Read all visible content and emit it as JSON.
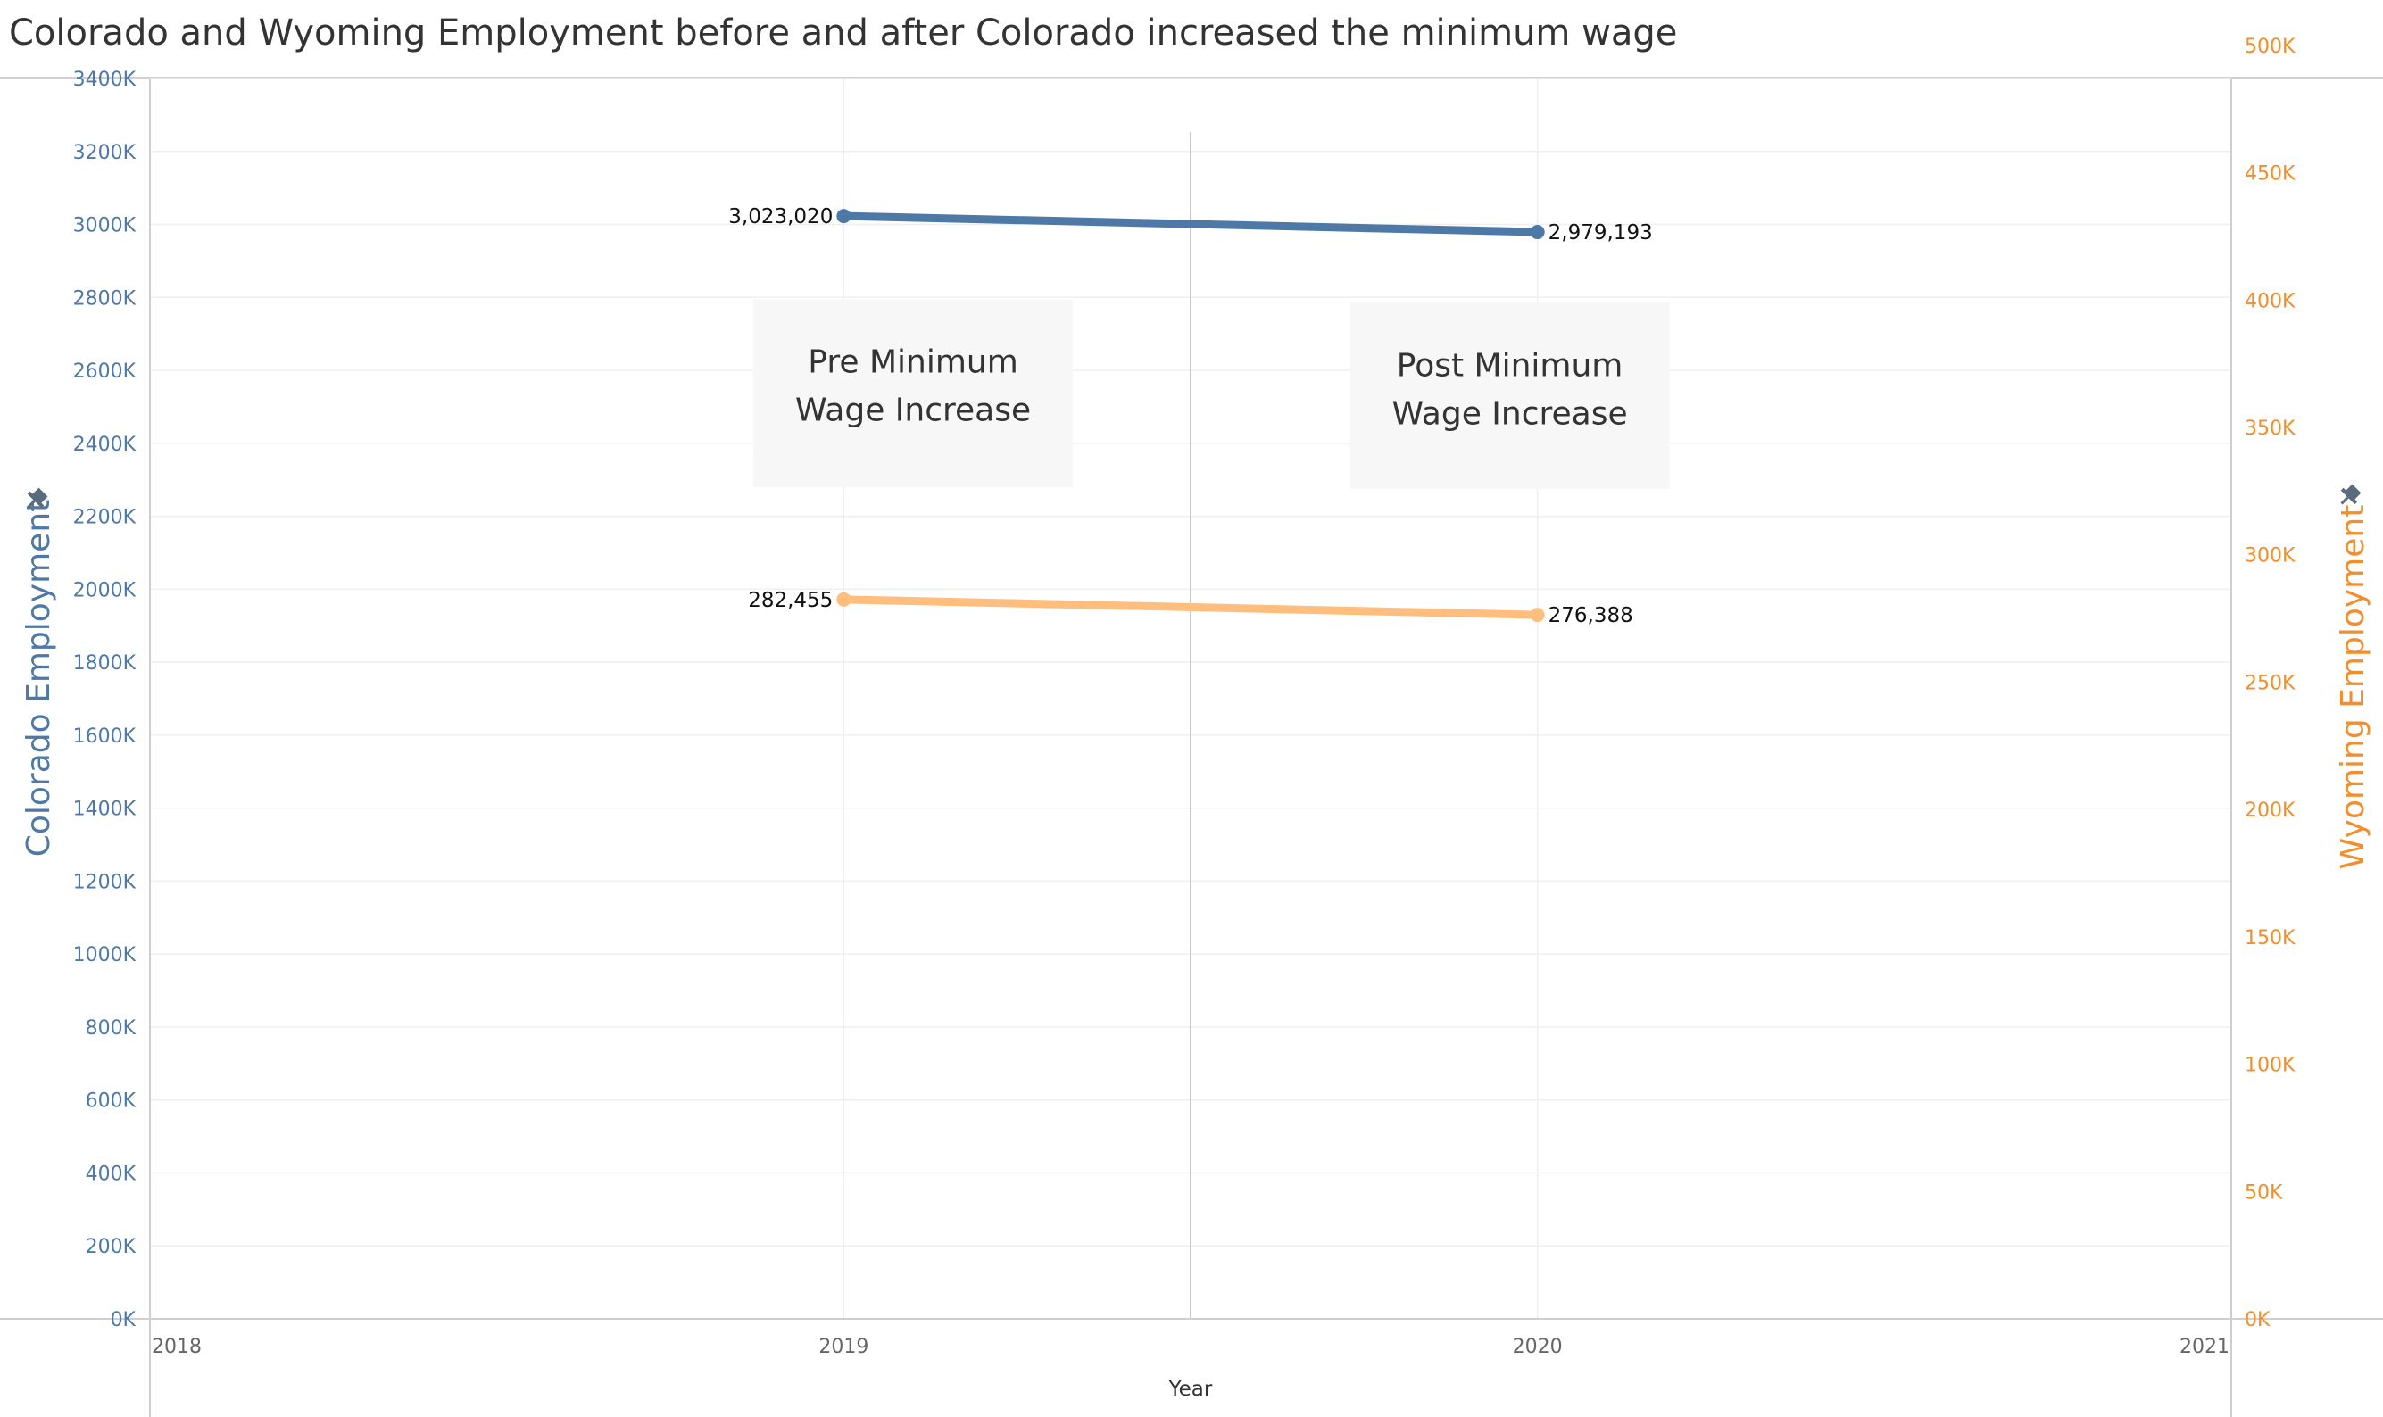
{
  "chart_data": {
    "type": "line",
    "title": "Colorado and Wyoming Employment before and after Colorado increased the minimum wage",
    "xlabel": "Year",
    "x_ticks": [
      "2018",
      "2019",
      "2020",
      "2021"
    ],
    "xlim": [
      2018,
      2021
    ],
    "series": [
      {
        "name": "Colorado Employment",
        "axis": "left",
        "color": "#4E79A7",
        "x": [
          2019,
          2020
        ],
        "values": [
          3023020,
          2979193
        ],
        "labels": [
          "3,023,020",
          "2,979,193"
        ]
      },
      {
        "name": "Wyoming Employment",
        "axis": "right",
        "color": "#FFBE7D",
        "x": [
          2019,
          2020
        ],
        "values": [
          282455,
          276388
        ],
        "labels": [
          "282,455",
          "276,388"
        ]
      }
    ],
    "y_left": {
      "label": "Colorado Employment",
      "color": "#4E79A7",
      "ylim": [
        0,
        3400000
      ],
      "ticks": [
        "0K",
        "200K",
        "400K",
        "600K",
        "800K",
        "1000K",
        "1200K",
        "1400K",
        "1600K",
        "1800K",
        "2000K",
        "2200K",
        "2400K",
        "2600K",
        "2800K",
        "3000K",
        "3200K",
        "3400K"
      ]
    },
    "y_right": {
      "label": "Wyoming Employment",
      "color": "#F28E2B",
      "ylim": [
        0,
        487000
      ],
      "ticks": [
        "0K",
        "50K",
        "100K",
        "150K",
        "200K",
        "250K",
        "300K",
        "350K",
        "400K",
        "450K",
        "500K"
      ]
    },
    "reference_line_x": 2019.5,
    "annotations": [
      {
        "lines": [
          "Pre Minimum",
          "Wage Increase"
        ]
      },
      {
        "lines": [
          "Post Minimum",
          "Wage Increase"
        ]
      }
    ],
    "grid": true,
    "legend": "none"
  }
}
